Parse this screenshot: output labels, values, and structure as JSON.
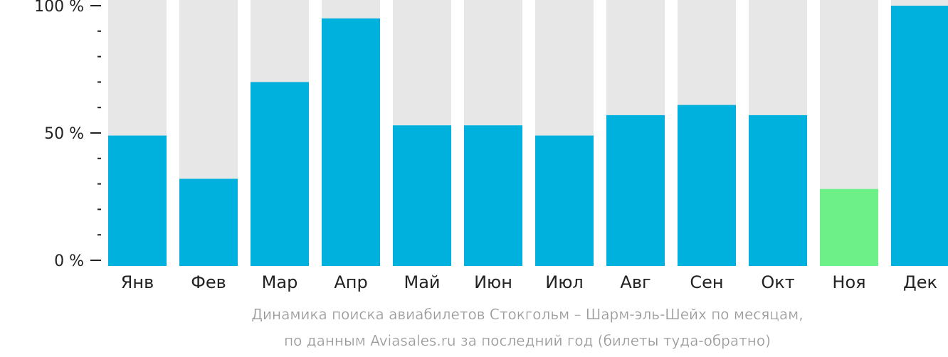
{
  "chart_data": {
    "type": "bar",
    "categories": [
      "Янв",
      "Фев",
      "Мар",
      "Апр",
      "Май",
      "Июн",
      "Июл",
      "Авг",
      "Сен",
      "Окт",
      "Ноя",
      "Дек"
    ],
    "values": [
      49,
      32,
      70,
      95,
      53,
      53,
      49,
      57,
      61,
      57,
      28,
      100
    ],
    "highlight_index": 10,
    "ylim": [
      0,
      100
    ],
    "yticks": [
      {
        "value": 0,
        "label": "0 %"
      },
      {
        "value": 50,
        "label": "50 %"
      },
      {
        "value": 100,
        "label": "100 %"
      }
    ],
    "minor_tick_step": 10,
    "grid": false,
    "xlabel": "",
    "ylabel": ""
  },
  "caption": {
    "line1": "Динамика поиска авиабилетов Стокгольм – Шарм-эль-Шейх по месяцам,",
    "line2": "по данным Aviasales.ru за последний год (билеты туда-обратно)"
  },
  "colors": {
    "bar": "#00b0dd",
    "bar_highlight": "#6df088",
    "bar_background": "#e7e7e7",
    "axis": "#222222",
    "tick_text": "#222222",
    "caption_text": "#999999"
  }
}
